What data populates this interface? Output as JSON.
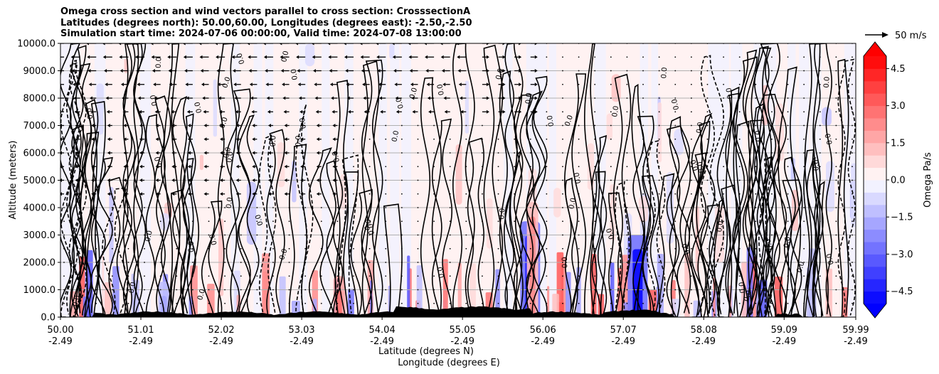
{
  "chart_data": {
    "type": "cross-section-contour",
    "title_lines": [
      "Omega cross section and wind vectors parallel to cross section: CrosssectionA",
      "Latitudes (degrees north): 50.00,60.00, Longitudes (degrees east): -2.50,-2.50",
      "Simulation start time: 2024-07-06 00:00:00, Valid time: 2024-07-08 13:00:00"
    ],
    "ylabel": "Altitude (meters)",
    "xlabel_line1": "Latitude (degrees N)",
    "xlabel_line2": "Longitude (degrees E)",
    "ylim": [
      0,
      10000
    ],
    "xlim": [
      50.0,
      59.99
    ],
    "y_ticks": [
      {
        "value": 0,
        "label": "0.0"
      },
      {
        "value": 1000,
        "label": "1000.0"
      },
      {
        "value": 2000,
        "label": "2000.0"
      },
      {
        "value": 3000,
        "label": "3000.0"
      },
      {
        "value": 4000,
        "label": "4000.0"
      },
      {
        "value": 5000,
        "label": "5000.0"
      },
      {
        "value": 6000,
        "label": "6000.0"
      },
      {
        "value": 7000,
        "label": "7000.0"
      },
      {
        "value": 8000,
        "label": "8000.0"
      },
      {
        "value": 9000,
        "label": "9000.0"
      },
      {
        "value": 10000,
        "label": "10000.0"
      }
    ],
    "x_ticks": [
      {
        "value": 50.0,
        "lat": "50.00",
        "lon": "-2.49"
      },
      {
        "value": 51.01,
        "lat": "51.01",
        "lon": "-2.49"
      },
      {
        "value": 52.02,
        "lat": "52.02",
        "lon": "-2.49"
      },
      {
        "value": 53.03,
        "lat": "53.03",
        "lon": "-2.49"
      },
      {
        "value": 54.04,
        "lat": "54.04",
        "lon": "-2.49"
      },
      {
        "value": 55.05,
        "lat": "55.05",
        "lon": "-2.49"
      },
      {
        "value": 56.06,
        "lat": "56.06",
        "lon": "-2.49"
      },
      {
        "value": 57.07,
        "lat": "57.07",
        "lon": "-2.49"
      },
      {
        "value": 58.08,
        "lat": "58.08",
        "lon": "-2.49"
      },
      {
        "value": 59.09,
        "lat": "59.09",
        "lon": "-2.49"
      },
      {
        "value": 59.99,
        "lat": "59.99",
        "lon": "-2.49"
      }
    ],
    "colorbar": {
      "label": "Omega Pa/s",
      "vmin": -5.0,
      "vmax": 5.0,
      "ticks": [
        {
          "value": 4.5,
          "label": "4.5"
        },
        {
          "value": 3.0,
          "label": "3.0"
        },
        {
          "value": 1.5,
          "label": "1.5"
        },
        {
          "value": 0.0,
          "label": "0.0"
        },
        {
          "value": -1.5,
          "label": "−1.5"
        },
        {
          "value": -3.0,
          "label": "−3.0"
        },
        {
          "value": -4.5,
          "label": "−4.5"
        }
      ],
      "levels": 20,
      "extend": "both",
      "colormap": "bwr"
    },
    "quiver_key": {
      "label": "50 m/s",
      "value": 50
    },
    "contour_label_text": "0.0",
    "grid": true,
    "strong_features": [
      {
        "lat": 55.9,
        "altitude_top": 3500,
        "omega": -4.5,
        "sign": "negative"
      },
      {
        "lat": 57.25,
        "altitude_top": 3000,
        "omega": -5.0,
        "sign": "negative"
      },
      {
        "lat": 55.93,
        "altitude_top": 4200,
        "omega": 2.0,
        "sign": "positive"
      },
      {
        "lat": 53.5,
        "altitude_top": 1500,
        "omega": 2.5,
        "sign": "positive"
      },
      {
        "lat": 51.3,
        "altitude_top": 1300,
        "omega": -2.0,
        "sign": "negative"
      }
    ]
  }
}
